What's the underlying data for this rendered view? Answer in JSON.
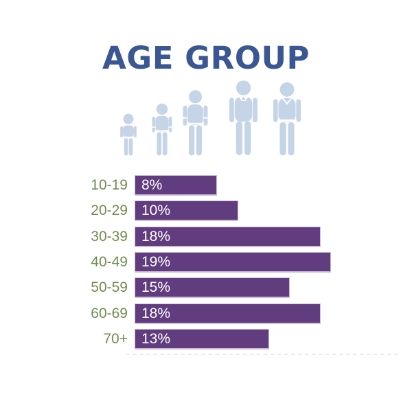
{
  "page": {
    "title": "AGE GROUP"
  },
  "chart_data": {
    "type": "bar",
    "orientation": "horizontal",
    "title": "AGE GROUP",
    "categories": [
      "10-19",
      "20-29",
      "30-39",
      "40-49",
      "50-59",
      "60-69",
      "70+"
    ],
    "values": [
      8,
      10,
      18,
      19,
      15,
      18,
      13
    ],
    "value_labels": [
      "8%",
      "10%",
      "18%",
      "19%",
      "15%",
      "18%",
      "13%"
    ],
    "value_suffix": "%",
    "xlabel": "",
    "ylabel": "",
    "xlim": [
      0,
      20
    ],
    "grid": false,
    "legend": false,
    "bars_labeled_inside": true,
    "title_color": "#3A5794",
    "bar_color": "#613C7E",
    "bar_border_color": "#CDBCDB",
    "category_label_color": "#6F8C4F",
    "value_label_color": "#FFFFFF"
  },
  "icons": {
    "silhouette_color": "#C6D4E7",
    "items": [
      {
        "name": "person-toddler-icon"
      },
      {
        "name": "person-child-icon"
      },
      {
        "name": "person-teen-icon"
      },
      {
        "name": "person-adult-tie-icon"
      },
      {
        "name": "person-adult-icon"
      }
    ]
  }
}
